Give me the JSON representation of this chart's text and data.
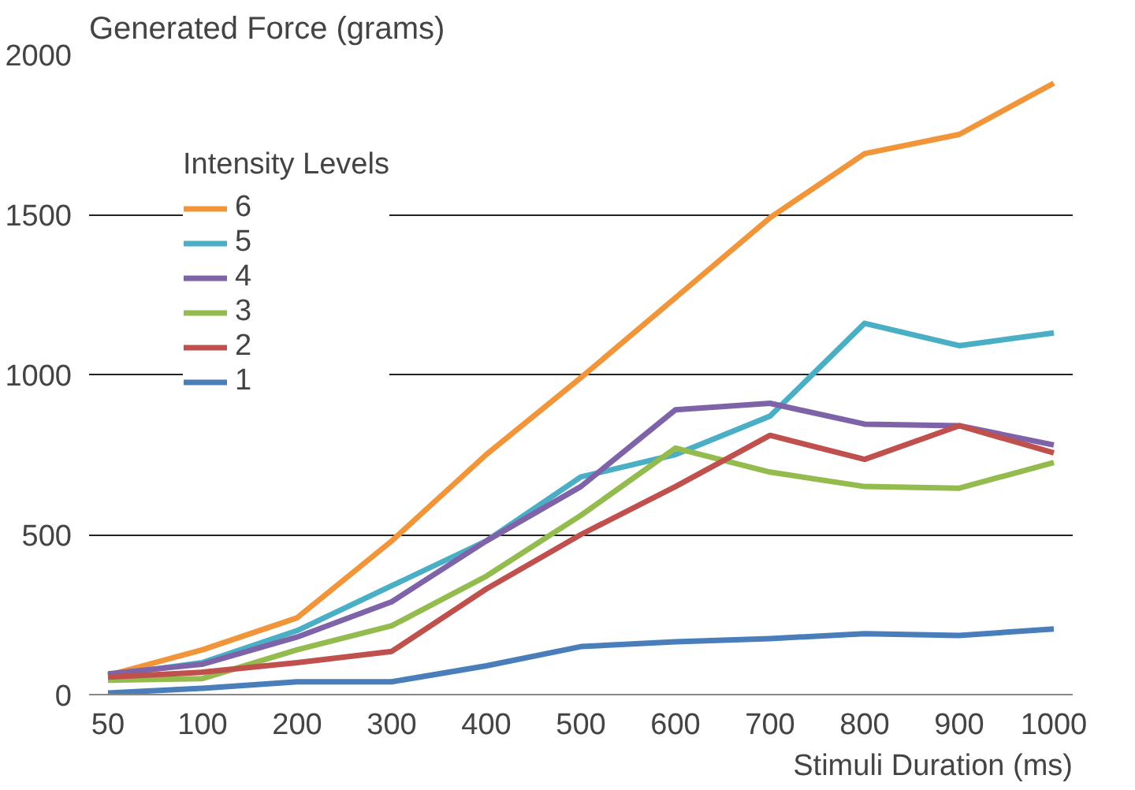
{
  "chart_data": {
    "type": "line",
    "ylabel": "Generated Force (grams)",
    "xlabel": "Stimuli Duration (ms)",
    "legend_title": "Intensity Levels",
    "categories": [
      "50",
      "100",
      "200",
      "300",
      "400",
      "500",
      "600",
      "700",
      "800",
      "900",
      "1000"
    ],
    "series": [
      {
        "name": "6",
        "color": "#f0953a",
        "values": [
          60,
          140,
          240,
          480,
          750,
          990,
          1240,
          1490,
          1690,
          1750,
          1910
        ]
      },
      {
        "name": "5",
        "color": "#4aaec5",
        "values": [
          60,
          100,
          200,
          340,
          480,
          680,
          750,
          870,
          1160,
          1090,
          1130
        ]
      },
      {
        "name": "4",
        "color": "#7f63a8",
        "values": [
          65,
          95,
          180,
          290,
          480,
          650,
          890,
          910,
          845,
          840,
          780
        ]
      },
      {
        "name": "3",
        "color": "#94bb4e",
        "values": [
          45,
          50,
          140,
          215,
          370,
          560,
          770,
          695,
          650,
          645,
          725
        ]
      },
      {
        "name": "2",
        "color": "#c0504d",
        "values": [
          55,
          70,
          100,
          135,
          330,
          500,
          650,
          810,
          735,
          840,
          755
        ]
      },
      {
        "name": "1",
        "color": "#4a7ebb",
        "values": [
          5,
          20,
          40,
          40,
          90,
          150,
          165,
          175,
          190,
          185,
          205
        ]
      }
    ],
    "ylim": [
      0,
      2000
    ],
    "yticks": [
      0,
      500,
      1000,
      1500,
      2000
    ],
    "grid": "y",
    "legend": "top left",
    "marker": "none",
    "line_style": "solid"
  }
}
